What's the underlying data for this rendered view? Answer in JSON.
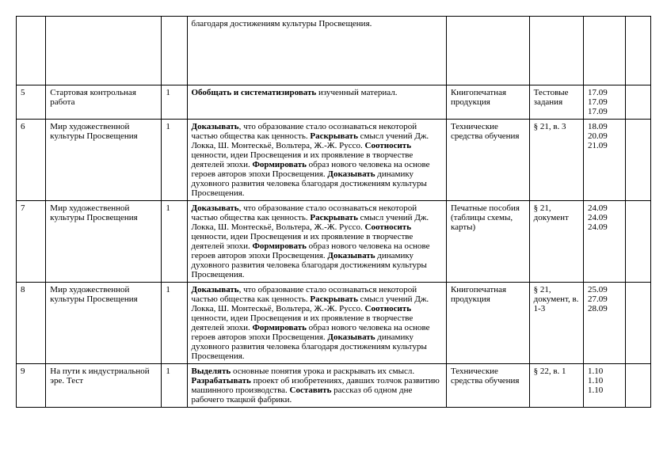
{
  "rows": [
    {
      "num": "",
      "topic": "",
      "qty": "",
      "content_keys": [
        "text_r0"
      ],
      "resource": "",
      "assignment": "",
      "dates": ""
    },
    {
      "num": "5",
      "topic": "Стартовая контрольная работа",
      "qty": "1",
      "content_keys": [
        "bold_summarize",
        "text_summarize_tail"
      ],
      "resource": "Книгопечатная продукция",
      "assignment": "Тестовые задания",
      "dates": "17.09 17.09 17.09"
    },
    {
      "num": "6",
      "topic": "Мир художественной культуры Просвещения",
      "qty": "1",
      "content_keys": [
        "bold_prove",
        "text_mid1",
        "bold_reveal",
        "text_mid2",
        "bold_correlate",
        "text_mid3",
        "bold_form",
        "text_mid4",
        "bold_prove2",
        "text_tail"
      ],
      "resource": "Технические средства обучения",
      "assignment": "§ 21, в. 3",
      "dates": "18.09 20.09 21.09"
    },
    {
      "num": "7",
      "topic": "Мир художественной культуры Просвещения",
      "qty": "1",
      "content_keys": [
        "bold_prove",
        "text_mid1",
        "bold_reveal",
        "text_mid2",
        "bold_correlate",
        "text_mid3",
        "bold_form",
        "text_mid4",
        "bold_prove2",
        "text_tail"
      ],
      "resource": "Печатные пособия (таблицы схемы, карты)",
      "assignment": "§ 21, документ",
      "dates": "24.09 24.09 24.09"
    },
    {
      "num": "8",
      "topic": "Мир художественной культуры Просвещения",
      "qty": "1",
      "content_keys": [
        "bold_prove",
        "text_mid1",
        "bold_reveal",
        "text_mid2",
        "bold_correlate",
        "text_mid3",
        "bold_form",
        "text_mid4",
        "bold_prove2",
        "text_tail"
      ],
      "resource": "Книгопечатная продукция",
      "assignment": "§ 21, документ, в. 1-3",
      "dates": "25.09 27.09 28.09"
    },
    {
      "num": "9",
      "topic": "На пути к индустриальной эре. Тест",
      "qty": "1",
      "content_keys": [
        "bold_highlight",
        "text_r9a",
        "bold_develop",
        "text_r9b",
        "bold_compose",
        "text_r9c"
      ],
      "resource": "Технические средства обучения",
      "assignment": "§ 22, в. 1",
      "dates": "1.10 1.10 1.10"
    }
  ],
  "fragments": {
    "text_r0": "благодаря достижениям культуры Просвещения.",
    "bold_summarize": "Обобщать и систематизировать",
    "text_summarize_tail": " изученный материал.",
    "bold_prove": "Доказывать",
    "text_mid1": ", что образование стало осознаваться некоторой частью общества как ценность. ",
    "bold_reveal": "Раскрывать",
    "text_mid2": " смысл учений Дж. Локка, Ш. Монтескьё, Вольтера, Ж.-Ж. Руссо. ",
    "bold_correlate": "Соотносить",
    "text_mid3": " ценности, идеи Просвещения и их проявление в творчестве деятелей эпохи. ",
    "bold_form": "Формировать",
    "text_mid4": " образ нового человека на основе героев авторов эпохи Просвещения. ",
    "bold_prove2": "Доказывать",
    "text_tail": " динамику духовного развития человека благодаря достижениям культуры Просвещения.",
    "bold_highlight": "Выделять",
    "text_r9a": " основные понятия урока и раскрывать их смысл. ",
    "bold_develop": "Разрабатывать",
    "text_r9b": " проект об изобретениях, давших толчок развитию машинного производства. ",
    "bold_compose": "Составить",
    "text_r9c": " рассказ об одном дне рабочего ткацкой фабрики."
  }
}
